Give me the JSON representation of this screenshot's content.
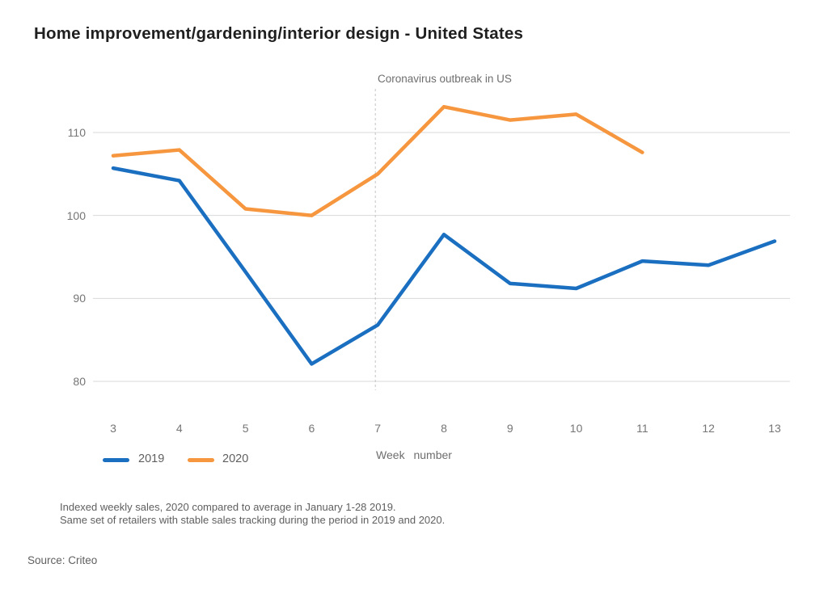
{
  "chart_data": {
    "type": "line",
    "title": "Home improvement/gardening/interior design - United States",
    "xlabel": "Week number",
    "ylabel": "",
    "x_ticks": [
      3,
      4,
      5,
      6,
      7,
      8,
      9,
      10,
      11,
      12,
      13
    ],
    "y_ticks": [
      80,
      90,
      100,
      110
    ],
    "ylim": [
      76.5,
      116
    ],
    "grid": "horizontal",
    "legend_position": "bottom-left",
    "series": [
      {
        "name": "2019",
        "color": "#1b6fc0",
        "x": [
          3,
          4,
          5,
          6,
          7,
          8,
          9,
          10,
          11,
          12,
          13
        ],
        "values": [
          105.7,
          104.2,
          93.2,
          82.1,
          86.8,
          97.7,
          91.8,
          91.2,
          94.5,
          94.0,
          96.9
        ]
      },
      {
        "name": "2020",
        "color": "#f6963e",
        "x": [
          3,
          4,
          5,
          6,
          7,
          8,
          9,
          10,
          11
        ],
        "values": [
          107.2,
          107.9,
          100.8,
          100.0,
          105.0,
          113.1,
          111.5,
          112.2,
          107.6
        ]
      }
    ],
    "annotation": {
      "text": "Coronavirus outbreak in US",
      "x_week": 7,
      "line_style": "dashed"
    }
  },
  "footnotes": [
    "Indexed weekly sales, 2020 compared to average in January 1-28 2019.",
    "Same set of retailers with stable sales tracking during the period in 2019 and 2020."
  ],
  "source": "Source: Criteo",
  "colors": {
    "series_2019": "#1b6fc0",
    "series_2020": "#f6963e",
    "gridline": "#d9d9d9",
    "annotation_line": "#c4c4c4",
    "text_muted": "#6e6e6e"
  }
}
